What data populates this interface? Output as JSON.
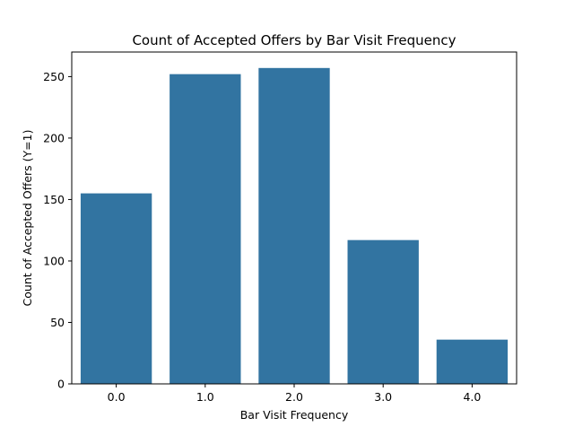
{
  "chart_data": {
    "type": "bar",
    "title": "Count of Accepted Offers by Bar Visit Frequency",
    "xlabel": "Bar Visit Frequency",
    "ylabel": "Count of Accepted Offers (Y=1)",
    "categories": [
      "0.0",
      "1.0",
      "2.0",
      "3.0",
      "4.0"
    ],
    "values": [
      155,
      252,
      257,
      117,
      36
    ],
    "ylim": [
      0,
      270
    ],
    "yticks": [
      0,
      50,
      100,
      150,
      200,
      250
    ],
    "grid": false,
    "legend": "none",
    "bar_color": "#3274a1"
  }
}
